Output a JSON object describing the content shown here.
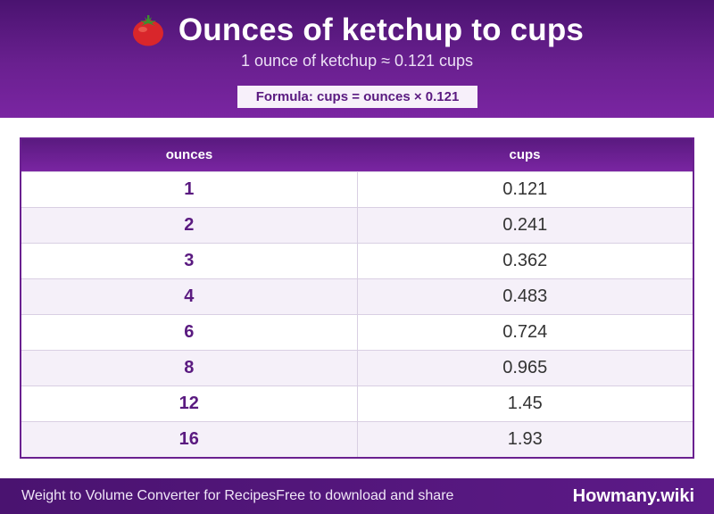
{
  "header": {
    "title": "Ounces of ketchup to cups",
    "subtitle": "1 ounce of ketchup ≈ 0.121 cups",
    "formula": "Formula: cups = ounces × 0.121",
    "icon": "tomato-icon"
  },
  "table": {
    "columns": [
      "ounces",
      "cups"
    ],
    "rows": [
      [
        "1",
        "0.121"
      ],
      [
        "2",
        "0.241"
      ],
      [
        "3",
        "0.362"
      ],
      [
        "4",
        "0.483"
      ],
      [
        "6",
        "0.724"
      ],
      [
        "8",
        "0.965"
      ],
      [
        "12",
        "1.45"
      ],
      [
        "16",
        "1.93"
      ]
    ]
  },
  "footer": {
    "left_text": "Weight to Volume Converter for Recipes",
    "mid_text": "Free to download and share",
    "brand": "Howmany.wiki"
  },
  "colors": {
    "header_bg": "#6a2090",
    "accent": "#5a1a80",
    "row_alt": "#f5f0f9"
  }
}
